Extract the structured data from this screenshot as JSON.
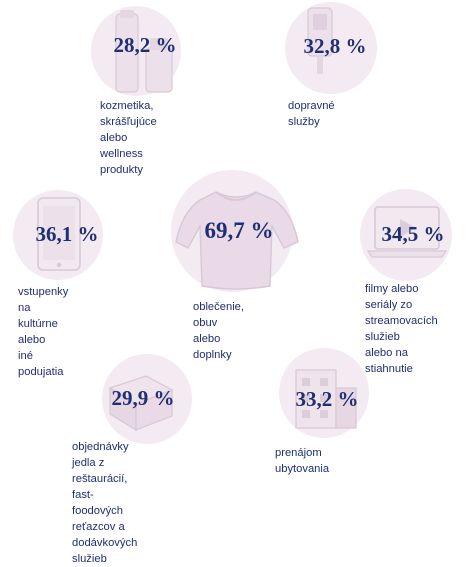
{
  "accent_color": "#1f2f73",
  "circle_color": "#f4eaf2",
  "icon_color": "#d8c8d6",
  "items": [
    {
      "id": "cosmetics",
      "value": "28,2 %",
      "label": "kozmetika,\nskrášľujúce alebo\nwellness produkty",
      "icon": "cosmetics-bottles-icon"
    },
    {
      "id": "transport",
      "value": "32,8 %",
      "label": "dopravné služby",
      "icon": "ticket-validator-icon"
    },
    {
      "id": "tickets",
      "value": "36,1 %",
      "label": "vstupenky na\nkultúrne alebo\niné podujatia",
      "icon": "smartphone-icon"
    },
    {
      "id": "clothing",
      "value": "69,7 %",
      "label": "oblečenie, obuv\nalebo doplnky",
      "icon": "sweater-icon"
    },
    {
      "id": "streaming",
      "value": "34,5 %",
      "label": "filmy alebo seriály zo\nstreamovacích služieb\nalebo na stiahnutie",
      "icon": "laptop-play-icon"
    },
    {
      "id": "food",
      "value": "29,9 %",
      "label": "objednávky jedla z reštaurácií,\nfast-foodových reťazcov a\ndodávkových služieb",
      "icon": "food-box-icon"
    },
    {
      "id": "accommodation",
      "value": "33,2 %",
      "label": "prenájom ubytovania",
      "icon": "building-icon"
    }
  ]
}
